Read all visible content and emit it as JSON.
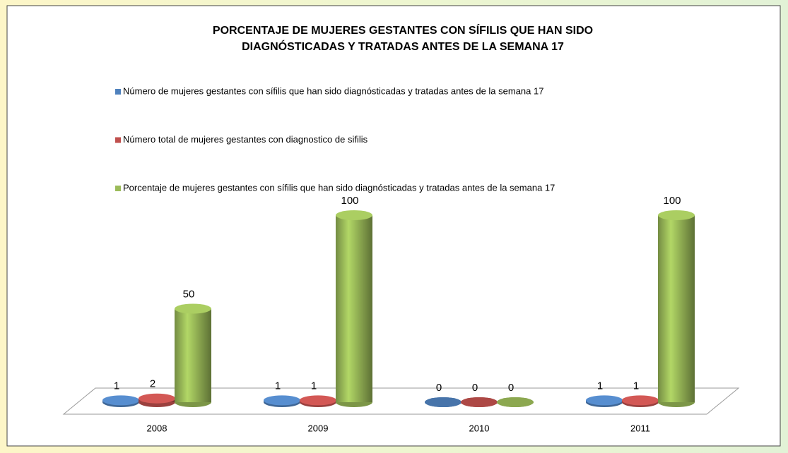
{
  "chart_data": {
    "type": "bar3d",
    "title": [
      "PORCENTAJE DE MUJERES GESTANTES CON SÍFILIS QUE HAN SIDO",
      "DIAGNÓSTICADAS Y TRATADAS ANTES DE LA SEMANA 17"
    ],
    "categories": [
      "2008",
      "2009",
      "2010",
      "2011"
    ],
    "series": [
      {
        "name": "Número de mujeres gestantes con sífilis que han sido diagnósticadas y tratadas antes de la semana 17",
        "color": "#4f81bd",
        "values": [
          1,
          1,
          0,
          1
        ]
      },
      {
        "name": "Número total de mujeres gestantes   con diagnostico de sifilis",
        "color": "#c0504d",
        "values": [
          2,
          1,
          0,
          1
        ]
      },
      {
        "name": "Porcentaje de mujeres gestantes con sífilis que han sido diagnósticadas y tratadas antes de la semana 17",
        "color": "#9bbb59",
        "values": [
          50,
          100,
          0,
          100
        ]
      }
    ]
  }
}
